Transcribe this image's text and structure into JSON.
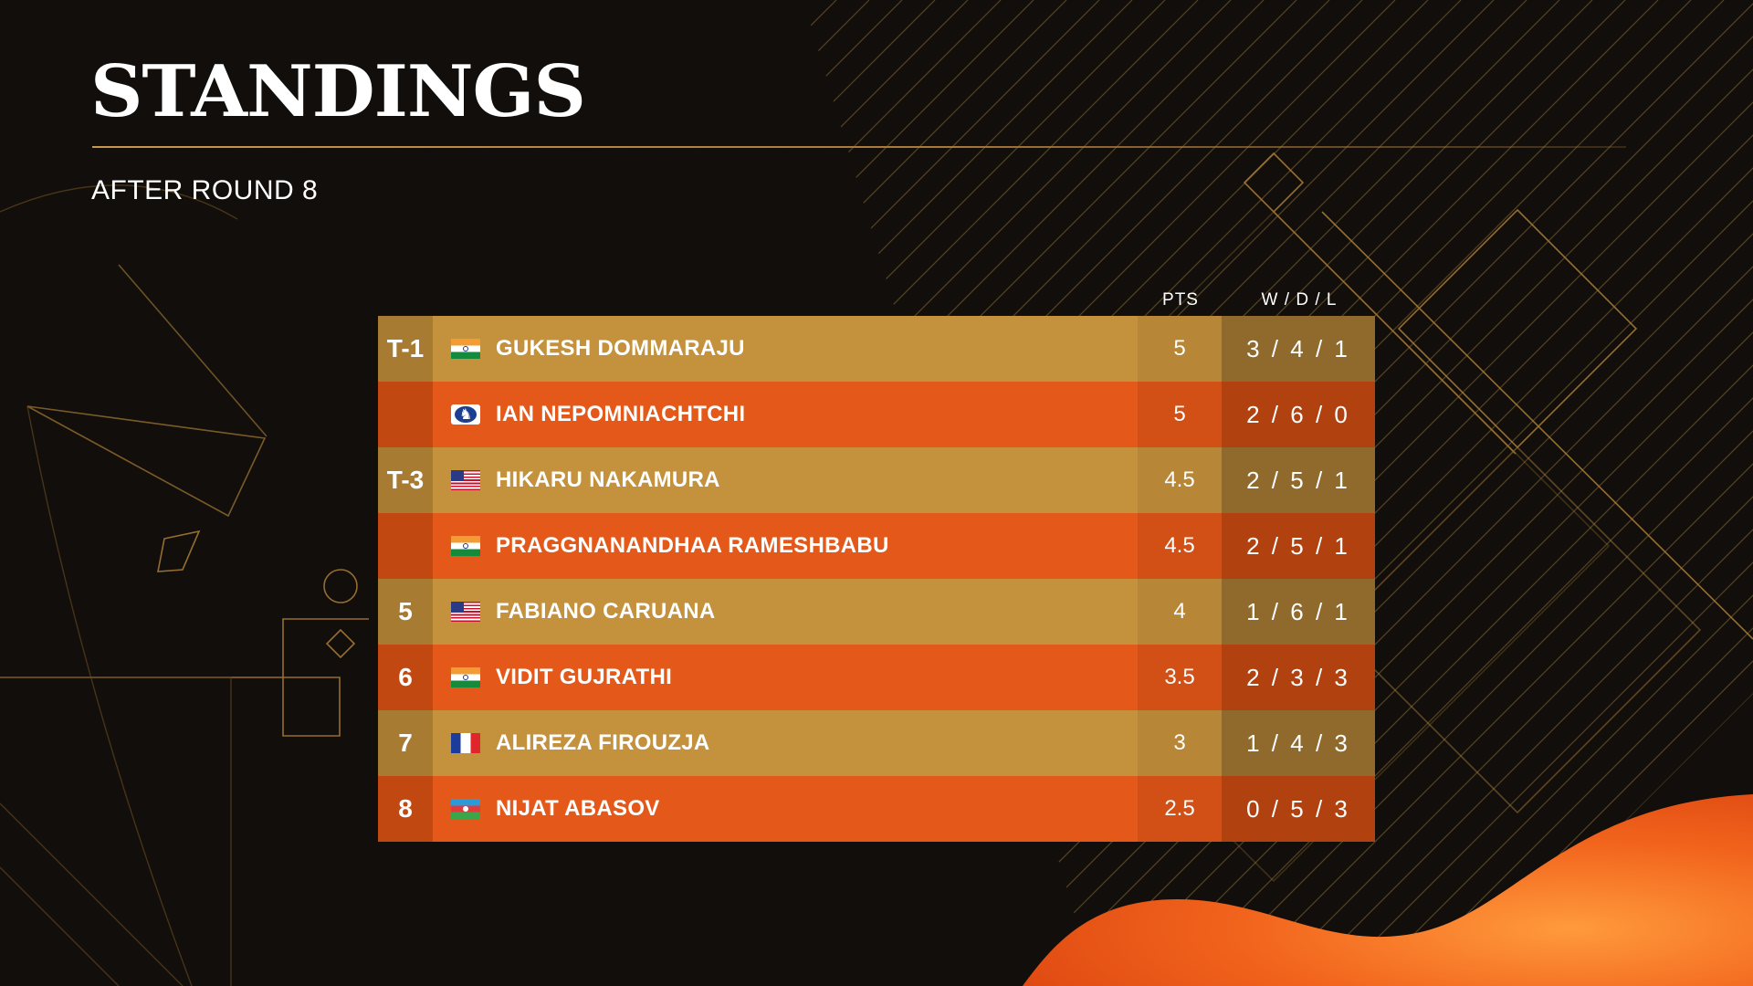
{
  "title": "STANDINGS",
  "subtitle": "AFTER ROUND 8",
  "columns": {
    "pts": "PTS",
    "wdl": "W / D / L"
  },
  "rows": [
    {
      "rank": "T-1",
      "flag": "India",
      "name": "GUKESH DOMMARAJU",
      "pts": "5",
      "wdl": "3 / 4 / 1"
    },
    {
      "rank": "",
      "flag": "FIDE",
      "name": "IAN NEPOMNIACHTCHI",
      "pts": "5",
      "wdl": "2 / 6 / 0"
    },
    {
      "rank": "T-3",
      "flag": "USA",
      "name": "HIKARU NAKAMURA",
      "pts": "4.5",
      "wdl": "2 / 5 / 1"
    },
    {
      "rank": "",
      "flag": "India",
      "name": "PRAGGNANANDHAA RAMESHBABU",
      "pts": "4.5",
      "wdl": "2 / 5 / 1"
    },
    {
      "rank": "5",
      "flag": "USA",
      "name": "FABIANO CARUANA",
      "pts": "4",
      "wdl": "1 / 6 / 1"
    },
    {
      "rank": "6",
      "flag": "India",
      "name": "VIDIT GUJRATHI",
      "pts": "3.5",
      "wdl": "2 / 3 / 3"
    },
    {
      "rank": "7",
      "flag": "France",
      "name": "ALIREZA FIROUZJA",
      "pts": "3",
      "wdl": "1 / 4 / 3"
    },
    {
      "rank": "8",
      "flag": "Azerbaijan",
      "name": "NIJAT ABASOV",
      "pts": "2.5",
      "wdl": "0 / 5 / 3"
    }
  ],
  "colors": {
    "background": "#110e0b",
    "row_gold": "#c4913d",
    "row_orange": "#e45919",
    "accent_line": "#c9974a"
  }
}
